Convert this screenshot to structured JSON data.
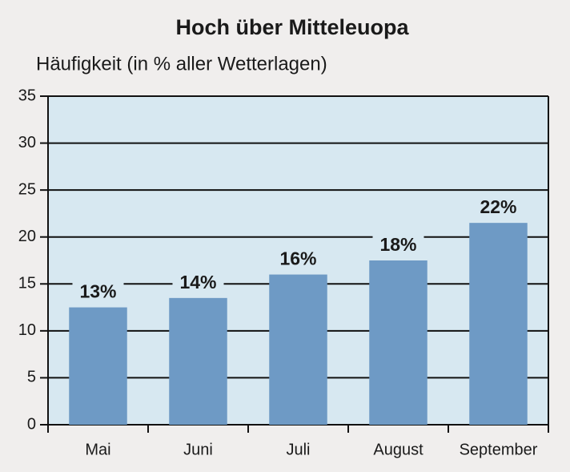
{
  "chart_data": {
    "type": "bar",
    "title": "Hoch über Mitteleuopa",
    "subtitle": "Häufigkeit (in % aller Wetterlagen)",
    "categories": [
      "Mai",
      "Juni",
      "Juli",
      "August",
      "September"
    ],
    "values": [
      12.5,
      13.5,
      16,
      17.5,
      21.5
    ],
    "value_labels": [
      "13%",
      "14%",
      "16%",
      "18%",
      "22%"
    ],
    "color": "#6e9ac5",
    "ylim": [
      0,
      35
    ],
    "yticks": [
      0,
      5,
      10,
      15,
      20,
      25,
      30,
      35
    ],
    "grid": true
  }
}
